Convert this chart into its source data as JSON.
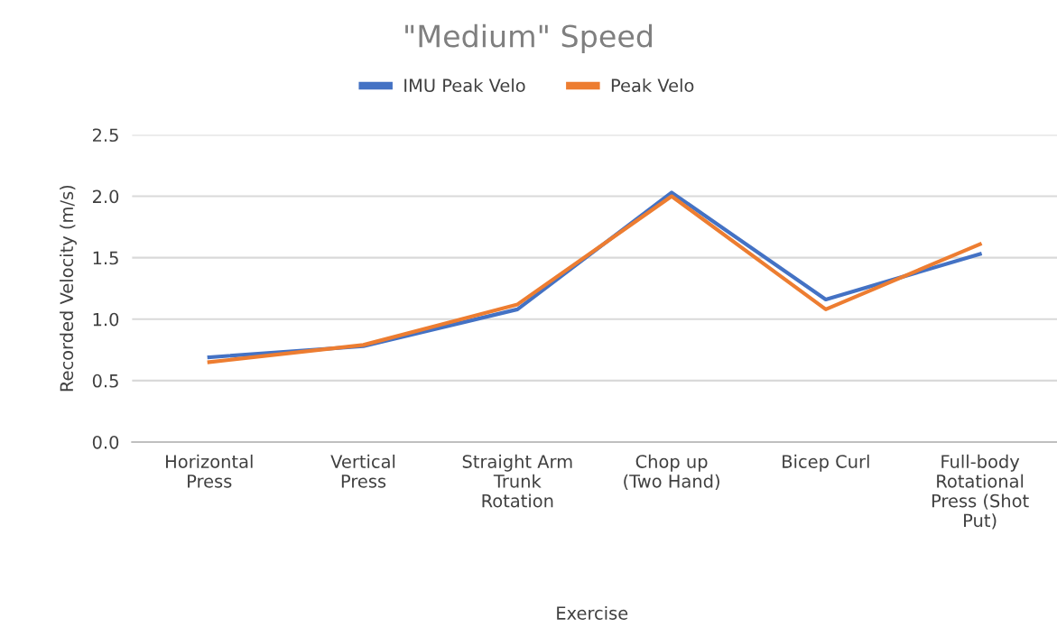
{
  "chart_data": {
    "type": "line",
    "title": "\"Medium\" Speed",
    "xlabel": "Exercise",
    "ylabel": "Recorded Velocity (m/s)",
    "categories": [
      "Horizontal\nPress",
      "Vertical\nPress",
      "Straight Arm\nTrunk\nRotation",
      "Chop up\n(Two Hand)",
      "Bicep Curl",
      "Full-body\nRotational\nPress (Shot\nPut)"
    ],
    "series": [
      {
        "name": "IMU Peak Velo",
        "color": "#4472c4",
        "values": [
          0.69,
          0.78,
          1.08,
          2.03,
          1.16,
          1.53
        ]
      },
      {
        "name": "Peak Velo",
        "color": "#ed7d31",
        "values": [
          0.65,
          0.79,
          1.12,
          2.0,
          1.08,
          1.61
        ]
      }
    ],
    "ylim": [
      0,
      2.5
    ],
    "yticks": [
      {
        "value": 0,
        "label": "0.0"
      },
      {
        "value": 0.5,
        "label": "0.5"
      },
      {
        "value": 1,
        "label": "1.0"
      },
      {
        "value": 1.5,
        "label": "1.5"
      },
      {
        "value": 2,
        "label": "2.0"
      },
      {
        "value": 2.5,
        "label": "2.5"
      }
    ],
    "grid": "y",
    "legend": "top",
    "marker": "none",
    "line_style": "solid"
  }
}
